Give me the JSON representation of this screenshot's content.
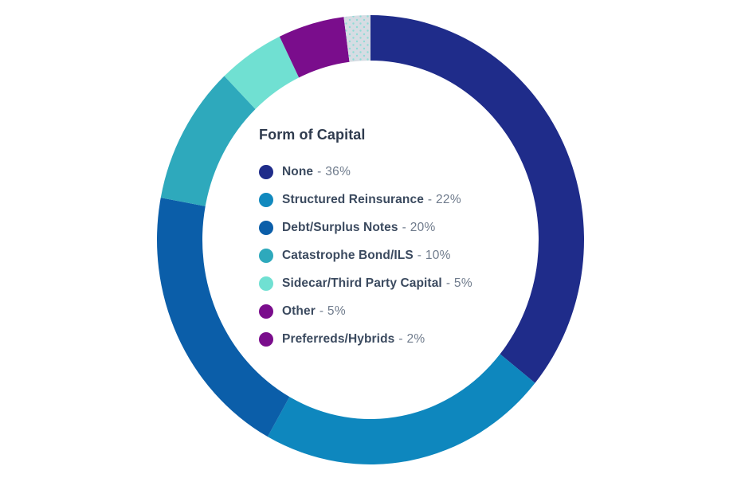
{
  "page": {
    "background": "#FFFFFF"
  },
  "colors": {
    "title": "#2F3B4E",
    "label": "#3B4A5F",
    "percent": "#6F7B8C",
    "pattern_background": "#D6DCE3",
    "pattern_dot": "#8EDCD6"
  },
  "chart_data": {
    "type": "pie",
    "subtype": "donut",
    "title": "Form of Capital",
    "unit": "%",
    "total": 100,
    "start_angle_deg": 0,
    "direction": "clockwise",
    "legend_position": "inside-center",
    "categories": [
      "None",
      "Structured Reinsurance",
      "Debt/Surplus Notes",
      "Catastrophe Bond/ILS",
      "Sidecar/Third Party Capital",
      "Other",
      "Preferreds/Hybrids"
    ],
    "values": [
      36,
      22,
      20,
      10,
      5,
      5,
      2
    ],
    "series": [
      {
        "label": "None",
        "value": 36,
        "percent_label": "- 36%",
        "color": "#1F2C8A",
        "legend_color": "#1F2C8A",
        "pattern": false
      },
      {
        "label": "Structured Reinsurance",
        "value": 22,
        "percent_label": "- 22%",
        "color": "#0E87BE",
        "legend_color": "#1189BE",
        "pattern": false
      },
      {
        "label": "Debt/Surplus Notes",
        "value": 20,
        "percent_label": "- 20%",
        "color": "#0B5EA9",
        "legend_color": "#0B5EA9",
        "pattern": false
      },
      {
        "label": "Catastrophe Bond/ILS",
        "value": 10,
        "percent_label": "- 10%",
        "color": "#2EA9BC",
        "legend_color": "#2EA9BC",
        "pattern": false
      },
      {
        "label": "Sidecar/Third Party Capital",
        "value": 5,
        "percent_label": "- 5%",
        "color": "#70E0D2",
        "legend_color": "#70E0D2",
        "pattern": false
      },
      {
        "label": "Other",
        "value": 5,
        "percent_label": "- 5%",
        "color": "#7A0D8C",
        "legend_color": "#7A0D8C",
        "pattern": false
      },
      {
        "label": "Preferreds/Hybrids",
        "value": 2,
        "percent_label": "- 2%",
        "color": "#D6DCE3",
        "legend_color": "#7A0D8C",
        "pattern": true
      }
    ]
  }
}
